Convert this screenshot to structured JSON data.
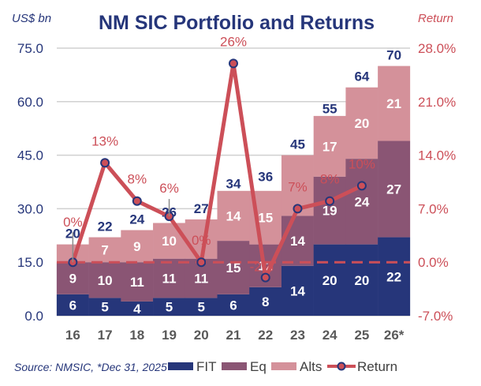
{
  "chart_data": {
    "type": "bar",
    "subtype": "stacked bar with line on secondary axis",
    "title": "NM SIC Portfolio and Returns",
    "ylabel": "US$ bn",
    "y2label": "Return",
    "ylim": [
      0,
      75
    ],
    "y_ticks": [
      "0.0",
      "15.0",
      "30.0",
      "45.0",
      "60.0",
      "75.0"
    ],
    "y2lim": [
      -7,
      28
    ],
    "y2_ticks": [
      "-7.0%",
      "0.0%",
      "7.0%",
      "14.0%",
      "21.0%",
      "28.0%"
    ],
    "categories": [
      "16",
      "17",
      "18",
      "19",
      "20",
      "21",
      "22",
      "23",
      "24",
      "25",
      "26*"
    ],
    "series": [
      {
        "name": "FIT",
        "type": "bar",
        "color": "#26367a",
        "values": [
          6,
          5,
          4,
          5,
          5,
          6,
          8,
          14,
          20,
          20,
          22
        ]
      },
      {
        "name": "Eq",
        "type": "bar",
        "color": "#8a5574",
        "values": [
          9,
          10,
          11,
          11,
          11,
          15,
          12,
          14,
          19,
          24,
          27
        ]
      },
      {
        "name": "Alts",
        "type": "bar",
        "color": "#d4919a",
        "values": [
          5,
          7,
          9,
          10,
          11,
          14,
          15,
          17,
          17,
          20,
          21
        ]
      },
      {
        "name": "Return",
        "type": "line",
        "axis": "right",
        "color": "#cc4f58",
        "marker_color": "#26367a",
        "values": [
          0,
          13,
          8,
          6,
          0,
          26,
          -2,
          7,
          8,
          10,
          null
        ],
        "labels": [
          "0%",
          "13%",
          "8%",
          "6%",
          "0%",
          "26%",
          "-2%",
          "7%",
          "8%",
          "10%",
          ""
        ]
      }
    ],
    "totals": [
      20,
      22,
      24,
      26,
      27,
      34,
      36,
      45,
      55,
      64,
      70
    ],
    "bar_segment_labels": {
      "FIT": [
        "6",
        "5",
        "4",
        "5",
        "5",
        "6",
        "8",
        "14",
        "20",
        "20",
        "22"
      ],
      "Eq": [
        "9",
        "10",
        "11",
        "11",
        "11",
        "15",
        "12",
        "14",
        "19",
        "24",
        "27"
      ],
      "Alts": [
        "",
        "7",
        "9",
        "10",
        "",
        "14",
        "15",
        "",
        "17",
        "20",
        "21"
      ]
    },
    "reference_line": {
      "value": 0,
      "axis": "right",
      "style": "dashed",
      "color": "#cc4f58"
    },
    "grid": true,
    "legend": {
      "placement": "bottom",
      "entries": [
        "FIT",
        "Eq",
        "Alts",
        "Return"
      ]
    },
    "source_note": "Source: NMSIC, *Dec 31, 2025"
  }
}
